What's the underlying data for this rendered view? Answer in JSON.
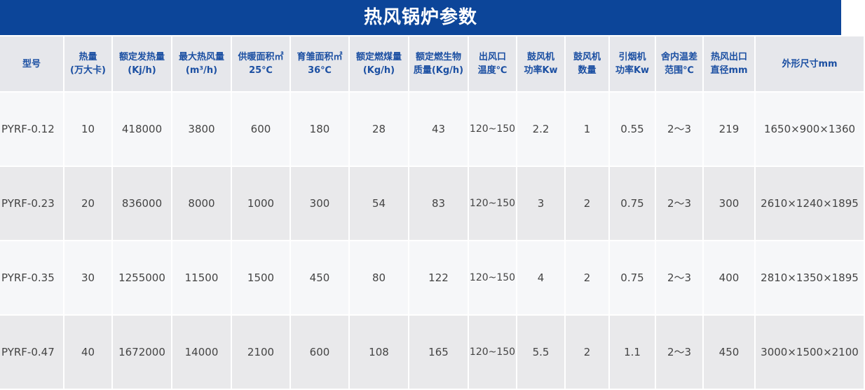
{
  "title": "热风锅炉参数",
  "columns": [
    [
      "型号",
      ""
    ],
    [
      "热量",
      "(万大卡)"
    ],
    [
      "额定发热量",
      "(Kj/h)"
    ],
    [
      "最大热风量",
      "(m³/h)"
    ],
    [
      "供暖面积㎡",
      "25℃"
    ],
    [
      "育雏面积㎡",
      "36℃"
    ],
    [
      "额定燃煤量",
      "(Kg/h)"
    ],
    [
      "额定燃生物",
      "质量(Kg/h)"
    ],
    [
      "出风口",
      "温度℃"
    ],
    [
      "鼓风机",
      "功率Kw"
    ],
    [
      "鼓风机",
      "数量"
    ],
    [
      "引烟机",
      "功率Kw"
    ],
    [
      "舍内温差",
      "范围℃"
    ],
    [
      "热风出口",
      "直径mm"
    ],
    [
      "外形尺寸mm",
      ""
    ]
  ],
  "rows": [
    [
      "PYRF-0.12",
      "10",
      "418000",
      "3800",
      "600",
      "180",
      "28",
      "43",
      "120~150",
      "2.2",
      "1",
      "0.55",
      "2～3",
      "219",
      "1650×900×1360"
    ],
    [
      "PYRF-0.23",
      "20",
      "836000",
      "8000",
      "1000",
      "300",
      "54",
      "83",
      "120~150",
      "3",
      "2",
      "0.75",
      "2～3",
      "300",
      "2610×1240×1895"
    ],
    [
      "PYRF-0.35",
      "30",
      "1255000",
      "11500",
      "1500",
      "450",
      "80",
      "122",
      "120~150",
      "4",
      "2",
      "0.75",
      "2～3",
      "400",
      "2810×1350×1895"
    ],
    [
      "PYRF-0.47",
      "40",
      "1672000",
      "14000",
      "2100",
      "600",
      "108",
      "165",
      "120~150",
      "5.5",
      "2",
      "1.1",
      "2～3",
      "450",
      "3000×1500×2100"
    ]
  ],
  "colors": {
    "title_bg": "#0c4599",
    "header_text": "#1b4fa2",
    "header_bg": "#e6e7eb",
    "row_light": "#f6f7f9",
    "row_dark": "#e9e9eb"
  }
}
